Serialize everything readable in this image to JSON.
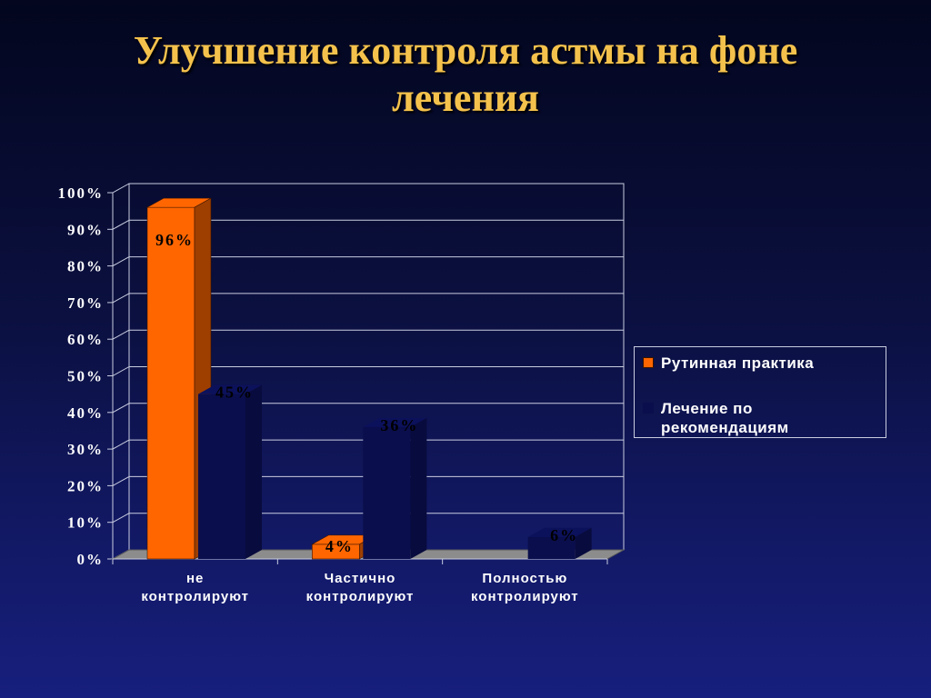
{
  "slide": {
    "title_line1": "Улучшение контроля астмы на фоне",
    "title_line2": "лечения"
  },
  "chart_data": {
    "type": "bar",
    "categories": [
      [
        "не",
        "контролируют"
      ],
      [
        "Частично",
        "контролируют"
      ],
      [
        "Полностью",
        "контролируют"
      ]
    ],
    "series": [
      {
        "name": "Рутинная практика",
        "values": [
          96,
          4,
          0
        ],
        "labels": [
          "96%",
          "4%",
          ""
        ],
        "color": "#ff6600"
      },
      {
        "name": "Лечение по рекомендациям",
        "values": [
          45,
          36,
          6
        ],
        "labels": [
          "45%",
          "36%",
          "6%"
        ],
        "color": "#0a0e4c"
      }
    ],
    "yticks": [
      "0%",
      "10%",
      "20%",
      "30%",
      "40%",
      "50%",
      "60%",
      "70%",
      "80%",
      "90%",
      "100%"
    ],
    "ylim": [
      0,
      100
    ],
    "grid": true,
    "legend_position": "right",
    "style": "3d"
  }
}
